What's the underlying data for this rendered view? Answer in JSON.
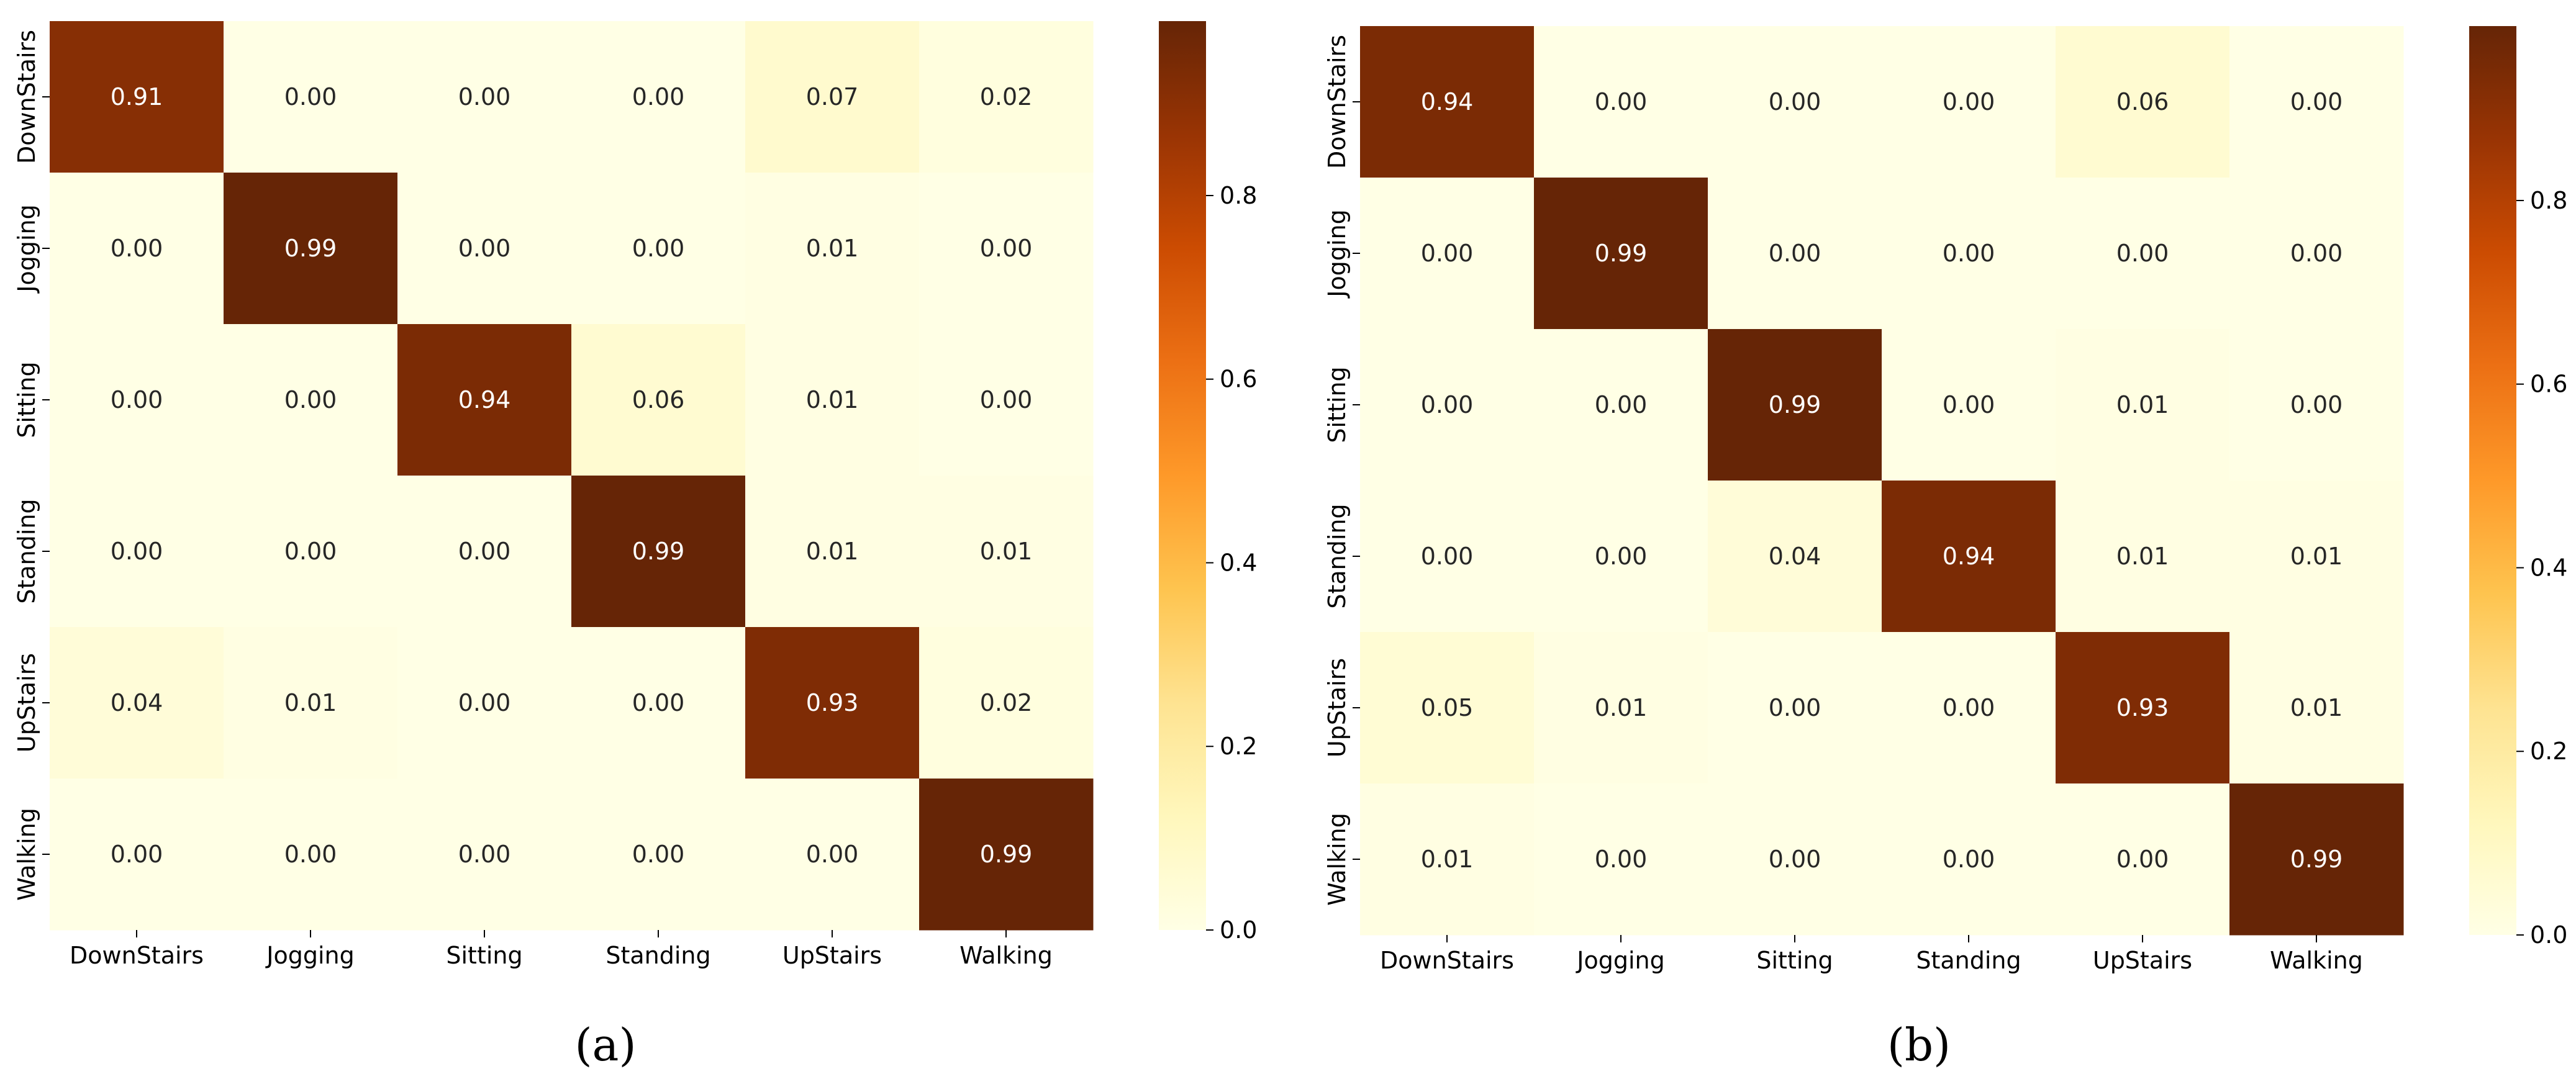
{
  "chart_data": [
    {
      "type": "heatmap",
      "caption": "(a)",
      "row_labels": [
        "DownStairs",
        "Jogging",
        "Sitting",
        "Standing",
        "UpStairs",
        "Walking"
      ],
      "col_labels": [
        "DownStairs",
        "Jogging",
        "Sitting",
        "Standing",
        "UpStairs",
        "Walking"
      ],
      "values": [
        [
          0.91,
          0.0,
          0.0,
          0.0,
          0.07,
          0.02
        ],
        [
          0.0,
          0.99,
          0.0,
          0.0,
          0.01,
          0.0
        ],
        [
          0.0,
          0.0,
          0.94,
          0.06,
          0.01,
          0.0
        ],
        [
          0.0,
          0.0,
          0.0,
          0.99,
          0.01,
          0.01
        ],
        [
          0.04,
          0.01,
          0.0,
          0.0,
          0.93,
          0.02
        ],
        [
          0.0,
          0.0,
          0.0,
          0.0,
          0.0,
          0.99
        ]
      ],
      "vmin": 0.0,
      "vmax": 0.99,
      "colorbar_ticks": [
        0.0,
        0.2,
        0.4,
        0.6,
        0.8
      ],
      "colorbar_tick_labels": [
        "0.0",
        "0.2",
        "0.4",
        "0.6",
        "0.8"
      ],
      "colormap": "YlOrBr"
    },
    {
      "type": "heatmap",
      "caption": "(b)",
      "row_labels": [
        "DownStairs",
        "Jogging",
        "Sitting",
        "Standing",
        "UpStairs",
        "Walking"
      ],
      "col_labels": [
        "DownStairs",
        "Jogging",
        "Sitting",
        "Standing",
        "UpStairs",
        "Walking"
      ],
      "values": [
        [
          0.94,
          0.0,
          0.0,
          0.0,
          0.06,
          0.0
        ],
        [
          0.0,
          0.99,
          0.0,
          0.0,
          0.0,
          0.0
        ],
        [
          0.0,
          0.0,
          0.99,
          0.0,
          0.01,
          0.0
        ],
        [
          0.0,
          0.0,
          0.04,
          0.94,
          0.01,
          0.01
        ],
        [
          0.05,
          0.01,
          0.0,
          0.0,
          0.93,
          0.01
        ],
        [
          0.01,
          0.0,
          0.0,
          0.0,
          0.0,
          0.99
        ]
      ],
      "vmin": 0.0,
      "vmax": 0.99,
      "colorbar_ticks": [
        0.0,
        0.2,
        0.4,
        0.6,
        0.8
      ],
      "colorbar_tick_labels": [
        "0.0",
        "0.2",
        "0.4",
        "0.6",
        "0.8"
      ],
      "colormap": "YlOrBr"
    }
  ]
}
